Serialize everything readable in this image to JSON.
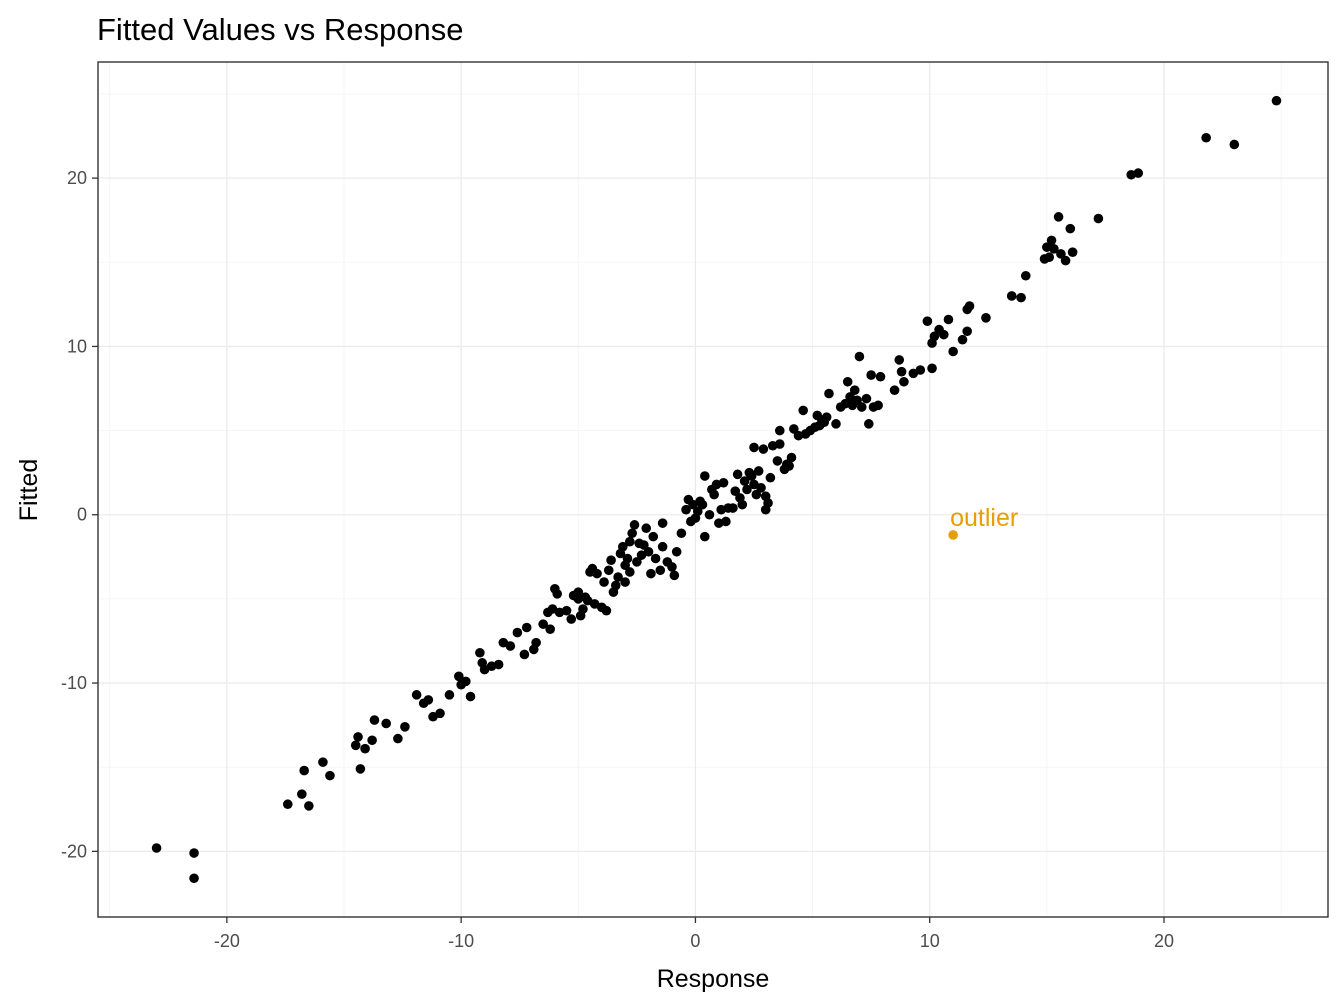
{
  "chart_data": {
    "type": "scatter",
    "title": "Fitted Values vs Response",
    "xlabel": "Response",
    "ylabel": "Fitted",
    "xlim": [
      -25.5,
      27.0
    ],
    "ylim": [
      -23.9,
      26.9
    ],
    "x_ticks": [
      -20,
      -10,
      0,
      10,
      20
    ],
    "y_ticks": [
      -20,
      -10,
      0,
      10,
      20
    ],
    "x_tick_labels": [
      "-20",
      "-10",
      "0",
      "10",
      "20"
    ],
    "y_tick_labels": [
      "-20",
      "-10",
      "0",
      "10",
      "20"
    ],
    "grid": true,
    "point_color": "#000000",
    "series": [
      {
        "name": "observations",
        "points": [
          [
            -23.0,
            -19.8
          ],
          [
            -21.4,
            -20.1
          ],
          [
            -21.4,
            -21.6
          ],
          [
            -17.4,
            -17.2
          ],
          [
            -16.8,
            -16.6
          ],
          [
            -16.7,
            -15.2
          ],
          [
            -16.5,
            -17.3
          ],
          [
            -15.9,
            -14.7
          ],
          [
            -15.6,
            -15.5
          ],
          [
            -14.5,
            -13.7
          ],
          [
            -14.4,
            -13.2
          ],
          [
            -14.3,
            -15.1
          ],
          [
            -14.1,
            -13.9
          ],
          [
            -13.8,
            -13.4
          ],
          [
            -13.7,
            -12.2
          ],
          [
            -13.2,
            -12.4
          ],
          [
            -12.7,
            -13.3
          ],
          [
            -12.4,
            -12.6
          ],
          [
            -11.9,
            -10.7
          ],
          [
            -11.6,
            -11.2
          ],
          [
            -11.4,
            -11.0
          ],
          [
            -11.2,
            -12.0
          ],
          [
            -10.9,
            -11.8
          ],
          [
            -10.5,
            -10.7
          ],
          [
            -10.1,
            -9.6
          ],
          [
            -10.0,
            -10.1
          ],
          [
            -9.6,
            -10.8
          ],
          [
            -9.8,
            -9.9
          ],
          [
            -9.2,
            -8.2
          ],
          [
            -9.1,
            -8.8
          ],
          [
            -9.0,
            -9.2
          ],
          [
            -8.7,
            -9.0
          ],
          [
            -8.4,
            -8.9
          ],
          [
            -8.2,
            -7.6
          ],
          [
            -7.9,
            -7.8
          ],
          [
            -7.6,
            -7.0
          ],
          [
            -7.3,
            -8.3
          ],
          [
            -7.2,
            -6.7
          ],
          [
            -6.9,
            -8.0
          ],
          [
            -6.8,
            -7.6
          ],
          [
            -6.5,
            -6.5
          ],
          [
            -6.3,
            -5.8
          ],
          [
            -6.1,
            -5.6
          ],
          [
            -6.2,
            -6.8
          ],
          [
            -6.0,
            -4.4
          ],
          [
            -5.9,
            -4.7
          ],
          [
            -5.8,
            -5.8
          ],
          [
            -5.5,
            -5.7
          ],
          [
            -5.3,
            -6.2
          ],
          [
            -5.2,
            -4.8
          ],
          [
            -5.0,
            -5.0
          ],
          [
            -5.0,
            -4.6
          ],
          [
            -4.9,
            -6.0
          ],
          [
            -4.8,
            -5.6
          ],
          [
            -4.7,
            -4.9
          ],
          [
            -4.6,
            -5.1
          ],
          [
            -4.5,
            -3.4
          ],
          [
            -4.4,
            -3.2
          ],
          [
            -4.3,
            -5.3
          ],
          [
            -4.2,
            -3.5
          ],
          [
            -4.0,
            -5.5
          ],
          [
            -3.9,
            -4.0
          ],
          [
            -3.8,
            -5.7
          ],
          [
            -3.7,
            -3.3
          ],
          [
            -3.6,
            -2.7
          ],
          [
            -3.5,
            -4.6
          ],
          [
            -3.4,
            -4.2
          ],
          [
            -3.3,
            -3.7
          ],
          [
            -3.2,
            -2.3
          ],
          [
            -3.1,
            -1.9
          ],
          [
            -3.0,
            -3.0
          ],
          [
            -3.0,
            -4.0
          ],
          [
            -2.9,
            -2.6
          ],
          [
            -2.8,
            -1.6
          ],
          [
            -2.8,
            -3.4
          ],
          [
            -2.7,
            -1.1
          ],
          [
            -2.6,
            -0.6
          ],
          [
            -2.5,
            -2.8
          ],
          [
            -2.4,
            -1.7
          ],
          [
            -2.3,
            -2.4
          ],
          [
            -2.2,
            -1.8
          ],
          [
            -2.1,
            -0.8
          ],
          [
            -2.0,
            -2.2
          ],
          [
            -1.9,
            -3.5
          ],
          [
            -1.8,
            -1.3
          ],
          [
            -1.7,
            -2.6
          ],
          [
            -1.5,
            -3.3
          ],
          [
            -1.4,
            -0.5
          ],
          [
            -1.4,
            -1.9
          ],
          [
            -1.2,
            -2.8
          ],
          [
            -1.0,
            -3.1
          ],
          [
            -0.9,
            -3.6
          ],
          [
            -0.8,
            -2.2
          ],
          [
            -0.6,
            -1.1
          ],
          [
            -0.4,
            0.3
          ],
          [
            -0.3,
            0.9
          ],
          [
            -0.2,
            -0.4
          ],
          [
            -0.1,
            0.6
          ],
          [
            0.0,
            -0.2
          ],
          [
            0.1,
            0.2
          ],
          [
            0.2,
            0.8
          ],
          [
            0.3,
            0.6
          ],
          [
            0.4,
            2.3
          ],
          [
            0.4,
            -1.3
          ],
          [
            0.6,
            0.0
          ],
          [
            0.7,
            1.5
          ],
          [
            0.8,
            1.2
          ],
          [
            0.9,
            1.8
          ],
          [
            1.0,
            -0.5
          ],
          [
            1.1,
            0.3
          ],
          [
            1.2,
            1.9
          ],
          [
            1.3,
            -0.4
          ],
          [
            1.4,
            0.4
          ],
          [
            1.6,
            0.4
          ],
          [
            1.7,
            1.4
          ],
          [
            1.8,
            2.4
          ],
          [
            1.9,
            1.0
          ],
          [
            2.0,
            0.6
          ],
          [
            2.1,
            2.0
          ],
          [
            2.2,
            1.5
          ],
          [
            2.3,
            2.5
          ],
          [
            2.4,
            2.3
          ],
          [
            2.5,
            1.8
          ],
          [
            2.5,
            4.0
          ],
          [
            2.6,
            1.2
          ],
          [
            2.7,
            2.6
          ],
          [
            2.8,
            1.6
          ],
          [
            2.9,
            3.9
          ],
          [
            3.0,
            0.3
          ],
          [
            3.0,
            1.1
          ],
          [
            3.1,
            0.7
          ],
          [
            3.2,
            2.2
          ],
          [
            3.3,
            4.1
          ],
          [
            3.5,
            3.2
          ],
          [
            3.6,
            4.2
          ],
          [
            3.6,
            5.0
          ],
          [
            3.8,
            2.7
          ],
          [
            3.9,
            3.0
          ],
          [
            4.0,
            2.9
          ],
          [
            4.1,
            3.4
          ],
          [
            4.2,
            5.1
          ],
          [
            4.4,
            4.7
          ],
          [
            4.6,
            6.2
          ],
          [
            4.7,
            4.8
          ],
          [
            4.9,
            5.0
          ],
          [
            5.1,
            5.2
          ],
          [
            5.2,
            5.9
          ],
          [
            5.3,
            5.3
          ],
          [
            5.4,
            5.6
          ],
          [
            5.5,
            5.5
          ],
          [
            5.6,
            5.8
          ],
          [
            5.7,
            7.2
          ],
          [
            6.0,
            5.4
          ],
          [
            6.2,
            6.4
          ],
          [
            6.4,
            6.6
          ],
          [
            6.5,
            7.9
          ],
          [
            6.6,
            7.0
          ],
          [
            6.7,
            6.5
          ],
          [
            6.8,
            7.4
          ],
          [
            6.9,
            6.8
          ],
          [
            7.0,
            9.4
          ],
          [
            7.1,
            6.4
          ],
          [
            7.3,
            6.9
          ],
          [
            7.4,
            5.4
          ],
          [
            7.5,
            8.3
          ],
          [
            7.6,
            6.4
          ],
          [
            7.8,
            6.5
          ],
          [
            7.9,
            8.2
          ],
          [
            8.5,
            7.4
          ],
          [
            8.7,
            9.2
          ],
          [
            8.8,
            8.5
          ],
          [
            8.9,
            7.9
          ],
          [
            9.3,
            8.4
          ],
          [
            9.6,
            8.6
          ],
          [
            10.1,
            8.7
          ],
          [
            9.9,
            11.5
          ],
          [
            10.1,
            10.2
          ],
          [
            10.2,
            10.6
          ],
          [
            10.4,
            11.0
          ],
          [
            10.6,
            10.7
          ],
          [
            10.8,
            11.6
          ],
          [
            11.0,
            9.7
          ],
          [
            11.4,
            10.4
          ],
          [
            11.6,
            10.9
          ],
          [
            11.6,
            12.2
          ],
          [
            11.7,
            12.4
          ],
          [
            12.4,
            11.7
          ],
          [
            13.5,
            13.0
          ],
          [
            13.9,
            12.9
          ],
          [
            14.1,
            14.2
          ],
          [
            14.9,
            15.2
          ],
          [
            15.0,
            15.9
          ],
          [
            15.1,
            15.3
          ],
          [
            15.2,
            16.3
          ],
          [
            15.3,
            15.8
          ],
          [
            15.5,
            17.7
          ],
          [
            15.6,
            15.5
          ],
          [
            15.8,
            15.1
          ],
          [
            16.0,
            17.0
          ],
          [
            16.1,
            15.6
          ],
          [
            17.2,
            17.6
          ],
          [
            18.6,
            20.2
          ],
          [
            18.9,
            20.3
          ],
          [
            21.8,
            22.4
          ],
          [
            23.0,
            22.0
          ],
          [
            24.8,
            24.6
          ]
        ]
      }
    ],
    "annotation": {
      "label": "outlier",
      "x": 11.0,
      "y": -1.2,
      "color": "#E69F00"
    }
  }
}
